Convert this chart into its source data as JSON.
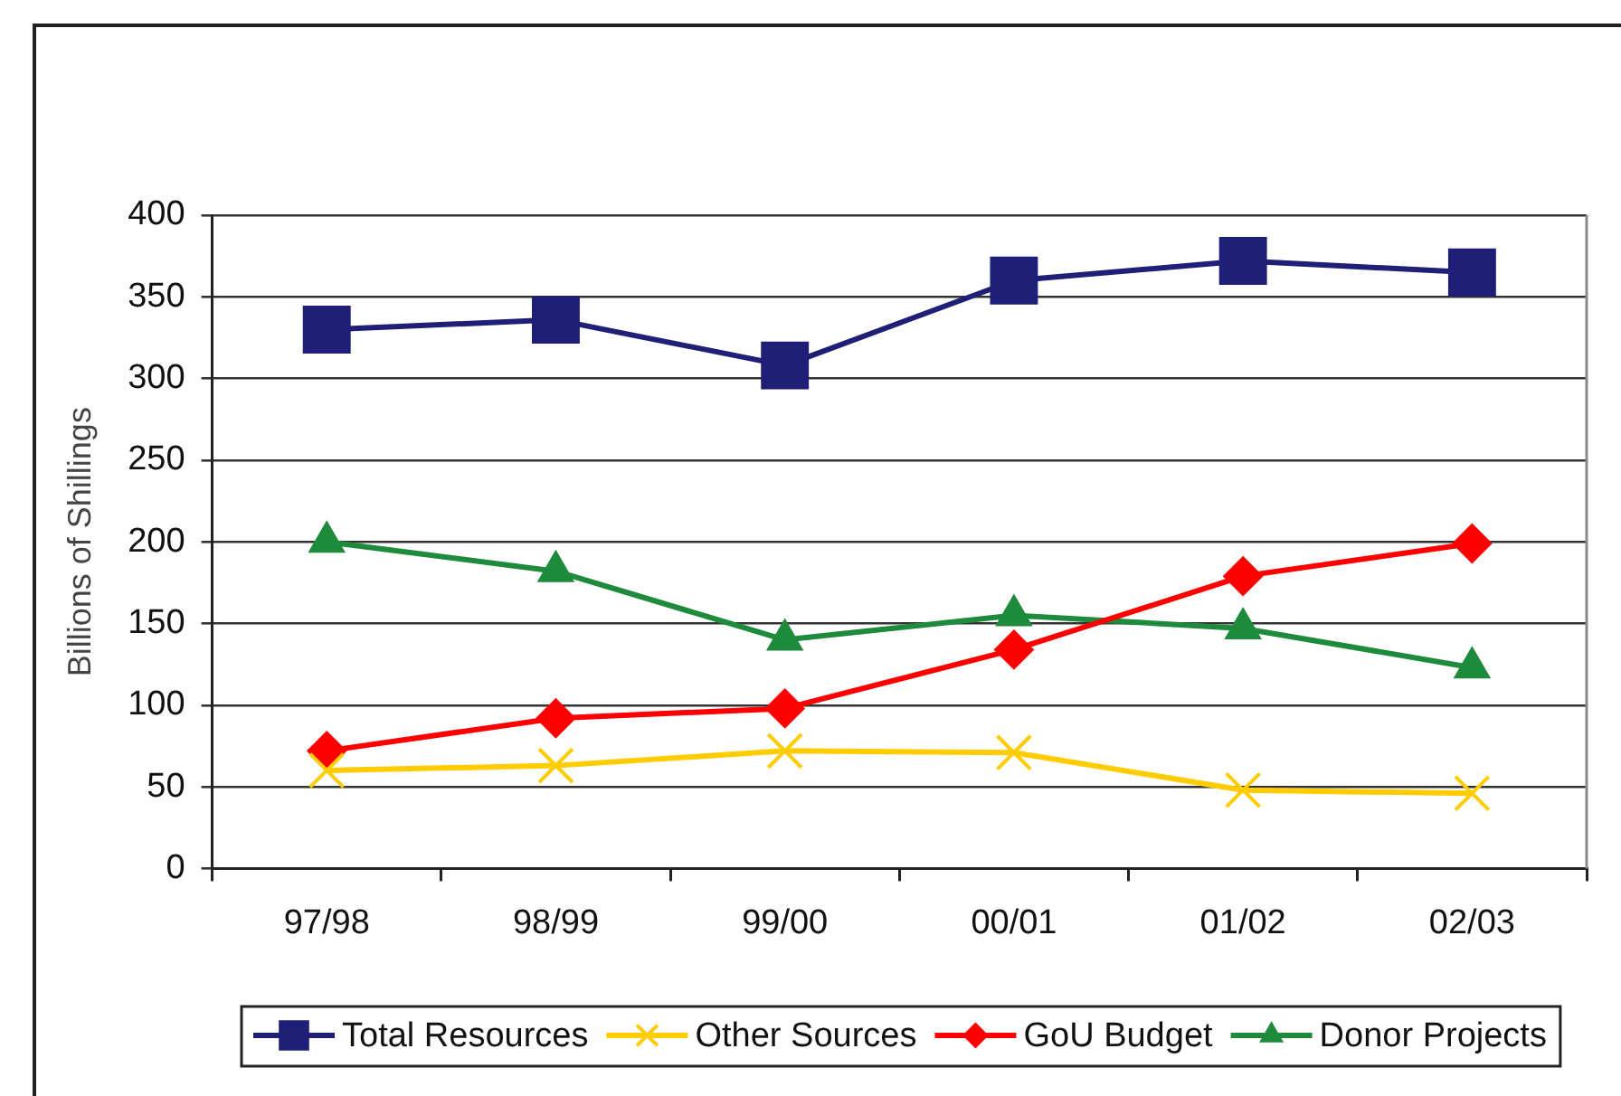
{
  "chart_data": {
    "type": "line",
    "ylabel": "Billions of Shillings",
    "categories": [
      "97/98",
      "98/99",
      "99/00",
      "00/01",
      "01/02",
      "02/03"
    ],
    "series": [
      {
        "name": "Total Resources",
        "color": "#1f1f78",
        "marker": "square",
        "values": [
          330,
          336,
          308,
          360,
          372,
          365
        ]
      },
      {
        "name": "Other Sources",
        "color": "#ffcc00",
        "marker": "cross",
        "values": [
          60,
          63,
          72,
          71,
          48,
          46
        ]
      },
      {
        "name": "GoU Budget",
        "color": "#ff0000",
        "marker": "diamond",
        "values": [
          72,
          92,
          98,
          134,
          179,
          199
        ]
      },
      {
        "name": "Donor Projects",
        "color": "#1e8a3c",
        "marker": "triangle",
        "values": [
          200,
          182,
          140,
          155,
          147,
          123
        ]
      }
    ],
    "ylim": [
      0,
      400
    ],
    "yticks": [
      0,
      50,
      100,
      150,
      200,
      250,
      300,
      350,
      400
    ],
    "grid": "y",
    "legend": "bottom",
    "line_style": "solid"
  }
}
